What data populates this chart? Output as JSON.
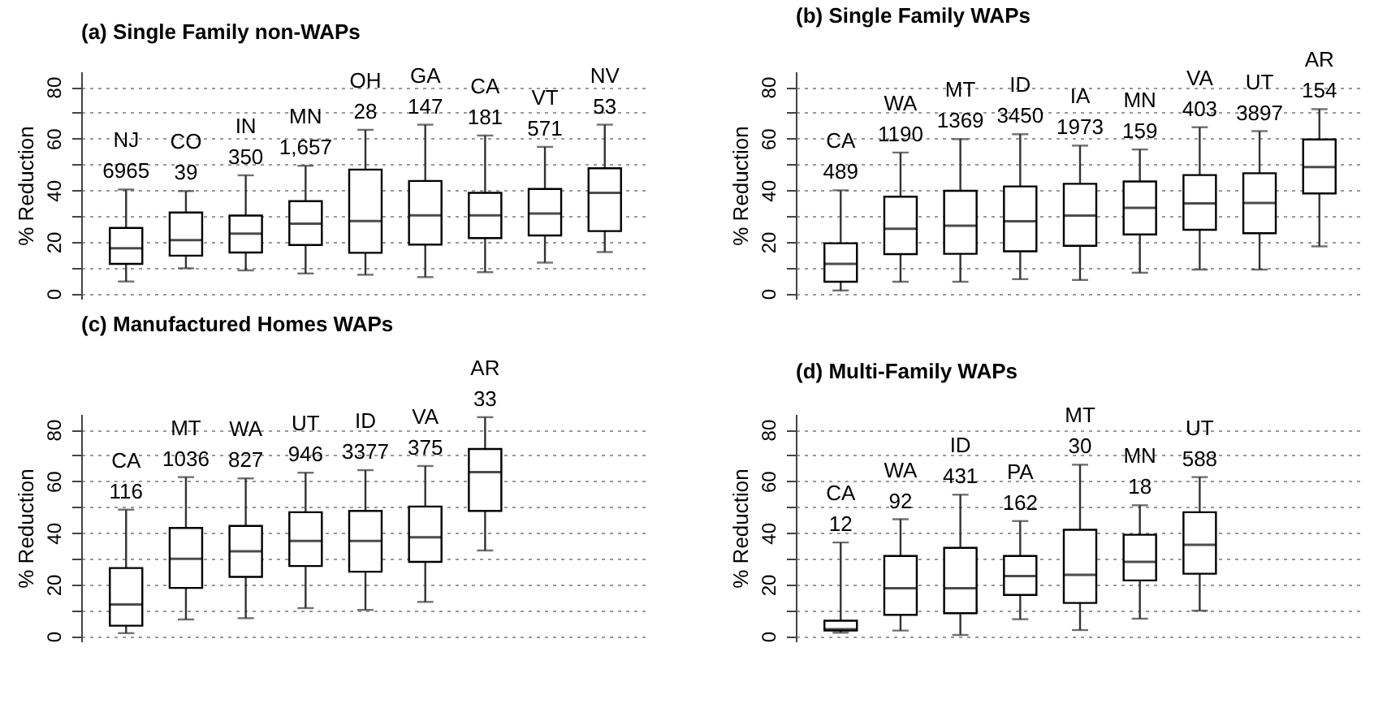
{
  "chart_data": [
    {
      "type": "box",
      "title": "(a) Single Family non-WAPs",
      "ylabel": "% Reduction",
      "categories": [
        "NJ",
        "CO",
        "IN",
        "MN",
        "OH",
        "GA",
        "CA",
        "VT",
        "NV"
      ],
      "boxes": [
        {
          "low": 4.7,
          "q1": 11.5,
          "median": 17.6,
          "q3": 25.4,
          "high": 40.3
        },
        {
          "low": 9.8,
          "q1": 14.7,
          "median": 20.7,
          "q3": 31.4,
          "high": 39.7
        },
        {
          "low": 9.0,
          "q1": 15.9,
          "median": 23.2,
          "q3": 30.2,
          "high": 45.8
        },
        {
          "low": 7.8,
          "q1": 18.8,
          "median": 27.1,
          "q3": 35.8,
          "high": 49.5
        },
        {
          "low": 7.3,
          "q1": 15.8,
          "median": 28.1,
          "q3": 48.0,
          "high": 63.4
        },
        {
          "low": 6.4,
          "q1": 19.0,
          "median": 30.3,
          "q3": 43.6,
          "high": 65.4
        },
        {
          "low": 8.3,
          "q1": 21.5,
          "median": 30.3,
          "q3": 39.0,
          "high": 61.2
        },
        {
          "low": 12.0,
          "q1": 22.5,
          "median": 31.0,
          "q3": 40.5,
          "high": 56.8
        },
        {
          "low": 16.1,
          "q1": 24.2,
          "median": 39.0,
          "q3": 48.5,
          "high": 65.4
        }
      ],
      "annotations": [
        {
          "text": "6965",
          "x": "NJ",
          "y": 40.3
        },
        {
          "text": "39",
          "x": "CO",
          "y": 39.7
        },
        {
          "text": "350",
          "x": "IN",
          "y": 45.8
        },
        {
          "text": "1,657",
          "x": "MN",
          "y": 49.5
        },
        {
          "text": "28",
          "x": "OH",
          "y": 63.4
        },
        {
          "text": "147",
          "x": "GA",
          "y": 65.4
        },
        {
          "text": "181",
          "x": "CA",
          "y": 61.2
        },
        {
          "text": "571",
          "x": "VT",
          "y": 56.8
        },
        {
          "text": "53",
          "x": "NV",
          "y": 65.4
        }
      ],
      "ylim": [
        -2,
        86
      ],
      "yticks": [
        0,
        {
          "value": 10,
          "label": null
        },
        20,
        {
          "value": 30,
          "label": null
        },
        40,
        {
          "value": 50,
          "label": null
        },
        60,
        {
          "value": 70,
          "label": null
        },
        80
      ],
      "grid": "y",
      "tick_labels": "y"
    },
    {
      "type": "box",
      "title": "(b) Single Family WAPs",
      "ylabel": "% Reduction",
      "categories": [
        "CA",
        "WA",
        "MT",
        "ID",
        "IA",
        "MN",
        "VA",
        "UT",
        "AR"
      ],
      "boxes": [
        {
          "low": 1.2,
          "q1": 4.6,
          "median": 11.5,
          "q3": 19.5,
          "high": 40.0
        },
        {
          "low": 4.6,
          "q1": 15.3,
          "median": 25.1,
          "q3": 37.5,
          "high": 54.6
        },
        {
          "low": 4.6,
          "q1": 15.4,
          "median": 26.3,
          "q3": 39.8,
          "high": 59.8
        },
        {
          "low": 5.6,
          "q1": 16.4,
          "median": 28.0,
          "q3": 41.5,
          "high": 61.7
        },
        {
          "low": 5.3,
          "q1": 18.5,
          "median": 30.2,
          "q3": 42.5,
          "high": 57.3
        },
        {
          "low": 8.1,
          "q1": 22.9,
          "median": 33.2,
          "q3": 43.4,
          "high": 55.8
        },
        {
          "low": 9.3,
          "q1": 24.7,
          "median": 34.9,
          "q3": 45.9,
          "high": 64.4
        },
        {
          "low": 9.3,
          "q1": 23.4,
          "median": 35.1,
          "q3": 46.6,
          "high": 62.9
        },
        {
          "low": 18.3,
          "q1": 38.8,
          "median": 49.0,
          "q3": 59.7,
          "high": 71.4
        }
      ],
      "annotations": [
        {
          "text": "489",
          "x": "CA",
          "y": 40.0
        },
        {
          "text": "1190",
          "x": "WA",
          "y": 54.6
        },
        {
          "text": "1369",
          "x": "MT",
          "y": 59.8
        },
        {
          "text": "3450",
          "x": "ID",
          "y": 61.7
        },
        {
          "text": "1973",
          "x": "IA",
          "y": 57.3
        },
        {
          "text": "159",
          "x": "MN",
          "y": 55.8
        },
        {
          "text": "403",
          "x": "VA",
          "y": 64.4
        },
        {
          "text": "3897",
          "x": "UT",
          "y": 62.9
        },
        {
          "text": "154",
          "x": "AR",
          "y": 71.4
        }
      ],
      "ylim": [
        -2,
        86
      ],
      "yticks": [
        0,
        {
          "value": 10,
          "label": null
        },
        20,
        {
          "value": 30,
          "label": null
        },
        40,
        {
          "value": 50,
          "label": null
        },
        60,
        {
          "value": 70,
          "label": null
        },
        80
      ],
      "grid": "y",
      "tick_labels": "y"
    },
    {
      "type": "box",
      "title": "(c) Manufactured Homes WAPs",
      "ylabel": "% Reduction",
      "categories": [
        "CA",
        "MT",
        "WA",
        "UT",
        "ID",
        "VA",
        "AR",
        null,
        null
      ],
      "boxes": [
        {
          "low": 1.2,
          "q1": 4.1,
          "median": 12.3,
          "q3": 26.4,
          "high": 49.0
        },
        {
          "low": 6.5,
          "q1": 18.7,
          "median": 30.0,
          "q3": 41.9,
          "high": 61.6
        },
        {
          "low": 7.0,
          "q1": 23.0,
          "median": 32.9,
          "q3": 42.7,
          "high": 61.1
        },
        {
          "low": 10.9,
          "q1": 27.2,
          "median": 36.9,
          "q3": 48.0,
          "high": 63.3
        },
        {
          "low": 10.2,
          "q1": 25.0,
          "median": 36.9,
          "q3": 48.5,
          "high": 64.3
        },
        {
          "low": 13.3,
          "q1": 28.8,
          "median": 38.3,
          "q3": 50.2,
          "high": 65.9
        },
        {
          "low": 33.2,
          "q1": 48.5,
          "median": 63.5,
          "q3": 72.5,
          "high": 84.8
        },
        null,
        null
      ],
      "annotations": [
        {
          "text": "116",
          "x": "CA",
          "y": 49.0
        },
        {
          "text": "1036",
          "x": "MT",
          "y": 61.6
        },
        {
          "text": "827",
          "x": "WA",
          "y": 61.1
        },
        {
          "text": "946",
          "x": "UT",
          "y": 63.3
        },
        {
          "text": "3377",
          "x": "ID",
          "y": 64.3
        },
        {
          "text": "375",
          "x": "VA",
          "y": 65.9
        },
        {
          "text": "33",
          "x": "AR",
          "y": 84.8
        }
      ],
      "ylim": [
        -2,
        86
      ],
      "yticks": [
        0,
        {
          "value": 10,
          "label": null
        },
        20,
        {
          "value": 30,
          "label": null
        },
        40,
        {
          "value": 50,
          "label": null
        },
        60,
        {
          "value": 70,
          "label": null
        },
        80
      ],
      "grid": "y",
      "tick_labels": "y"
    },
    {
      "type": "box",
      "title": "(d) Multi-Family WAPs",
      "ylabel": "% Reduction",
      "categories": [
        "CA",
        "WA",
        "ID",
        "PA",
        "MT",
        "MN",
        "UT",
        null,
        null
      ],
      "boxes": [
        {
          "low": 1.4,
          "q1": 2.2,
          "median": 2.7,
          "q3": 6.0,
          "high": 36.3
        },
        {
          "low": 2.2,
          "q1": 8.3,
          "median": 18.6,
          "q3": 31.1,
          "high": 45.3
        },
        {
          "low": 0.5,
          "q1": 8.9,
          "median": 18.6,
          "q3": 34.2,
          "high": 54.8
        },
        {
          "low": 6.6,
          "q1": 16.0,
          "median": 23.3,
          "q3": 31.1,
          "high": 44.6
        },
        {
          "low": 2.4,
          "q1": 12.9,
          "median": 23.8,
          "q3": 41.2,
          "high": 66.4
        },
        {
          "low": 6.8,
          "q1": 21.6,
          "median": 28.8,
          "q3": 39.3,
          "high": 50.7
        },
        {
          "low": 9.9,
          "q1": 24.2,
          "median": 35.4,
          "q3": 48.0,
          "high": 61.6
        },
        null,
        null
      ],
      "annotations": [
        {
          "text": "12",
          "x": "CA",
          "y": 36.3
        },
        {
          "text": "92",
          "x": "WA",
          "y": 45.3
        },
        {
          "text": "431",
          "x": "ID",
          "y": 54.8
        },
        {
          "text": "162",
          "x": "PA",
          "y": 44.6
        },
        {
          "text": "30",
          "x": "MT",
          "y": 66.4
        },
        {
          "text": "18",
          "x": "MN",
          "y": 50.7
        },
        {
          "text": "588",
          "x": "UT",
          "y": 61.6
        }
      ],
      "ylim": [
        -2,
        86
      ],
      "yticks": [
        0,
        {
          "value": 10,
          "label": null
        },
        20,
        {
          "value": 30,
          "label": null
        },
        40,
        {
          "value": 50,
          "label": null
        },
        60,
        {
          "value": 70,
          "label": null
        },
        80
      ],
      "grid": "y",
      "tick_labels": "y"
    }
  ]
}
